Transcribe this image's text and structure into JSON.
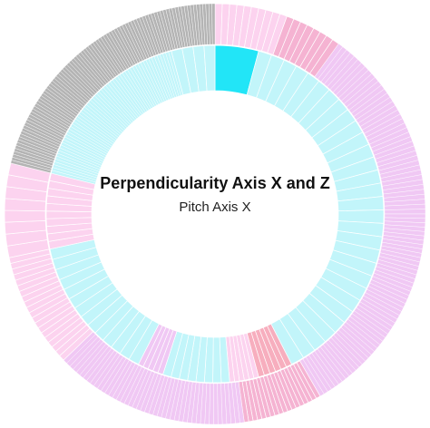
{
  "chart_data": {
    "type": "sunburst",
    "title": "Perpendicularity Axis X and Z",
    "subtitle": "Pitch Axis X",
    "colors": {
      "gray": "#b4b4b4",
      "cyan_light": "#c2f5fa",
      "cyan_strong": "#22e5f7",
      "pink_light": "#fcd3ef",
      "pink_mid": "#f5b3d2",
      "pink_strong": "#f7aebe",
      "lavender": "#f0c8f4",
      "separator": "#ffffff"
    },
    "inner_ring": {
      "segments": [
        {
          "start": 0,
          "end": 15,
          "color": "cyan_strong",
          "n": 1
        },
        {
          "start": 15,
          "end": 153,
          "color": "cyan_light",
          "n": 30
        },
        {
          "start": 153,
          "end": 165,
          "color": "pink_strong",
          "n": 6
        },
        {
          "start": 165,
          "end": 175,
          "color": "pink_light",
          "n": 6
        },
        {
          "start": 175,
          "end": 198,
          "color": "cyan_light",
          "n": 8
        },
        {
          "start": 198,
          "end": 207,
          "color": "lavender",
          "n": 5
        },
        {
          "start": 207,
          "end": 258,
          "color": "cyan_light",
          "n": 14
        },
        {
          "start": 258,
          "end": 284,
          "color": "pink_light",
          "n": 10
        },
        {
          "start": 284,
          "end": 345,
          "color": "cyan_light",
          "n": 60
        },
        {
          "start": 345,
          "end": 360,
          "color": "cyan_light",
          "n": 4
        }
      ]
    },
    "outer_ring": {
      "segments": [
        {
          "start": 0,
          "end": 20,
          "color": "pink_light",
          "n": 10
        },
        {
          "start": 20,
          "end": 36,
          "color": "pink_mid",
          "n": 8
        },
        {
          "start": 36,
          "end": 90,
          "color": "lavender",
          "n": 40
        },
        {
          "start": 90,
          "end": 150,
          "color": "lavender",
          "n": 50
        },
        {
          "start": 150,
          "end": 172,
          "color": "pink_mid",
          "n": 18
        },
        {
          "start": 172,
          "end": 226,
          "color": "lavender",
          "n": 45
        },
        {
          "start": 226,
          "end": 258,
          "color": "pink_light",
          "n": 20
        },
        {
          "start": 258,
          "end": 284,
          "color": "pink_light",
          "n": 8
        },
        {
          "start": 284,
          "end": 360,
          "color": "gray",
          "n": 90
        }
      ]
    }
  }
}
